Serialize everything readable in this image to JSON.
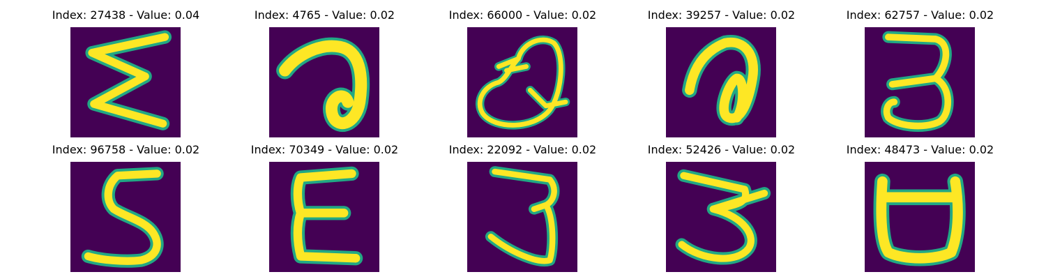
{
  "figure": {
    "colors": {
      "background": "#440154",
      "stroke_outer": "#22a884",
      "stroke_inner": "#fde725"
    },
    "panels": [
      {
        "title": "Index: 27438 - Value: 0.04",
        "glyph": "sigma-like"
      },
      {
        "title": "Index: 4765 - Value: 0.02",
        "glyph": "loop-hook"
      },
      {
        "title": "Index: 66000 - Value: 0.02",
        "glyph": "looped-q"
      },
      {
        "title": "Index: 39257 - Value: 0.02",
        "glyph": "loop-hook-narrow"
      },
      {
        "title": "Index: 62757 - Value: 0.02",
        "glyph": "three"
      },
      {
        "title": "Index: 96758 - Value: 0.02",
        "glyph": "five"
      },
      {
        "title": "Index: 70349 - Value: 0.02",
        "glyph": "epsilon"
      },
      {
        "title": "Index: 22092 - Value: 0.02",
        "glyph": "three-tall"
      },
      {
        "title": "Index: 52426 - Value: 0.02",
        "glyph": "three-wide"
      },
      {
        "title": "Index: 48473 - Value: 0.02",
        "glyph": "cup"
      }
    ]
  }
}
